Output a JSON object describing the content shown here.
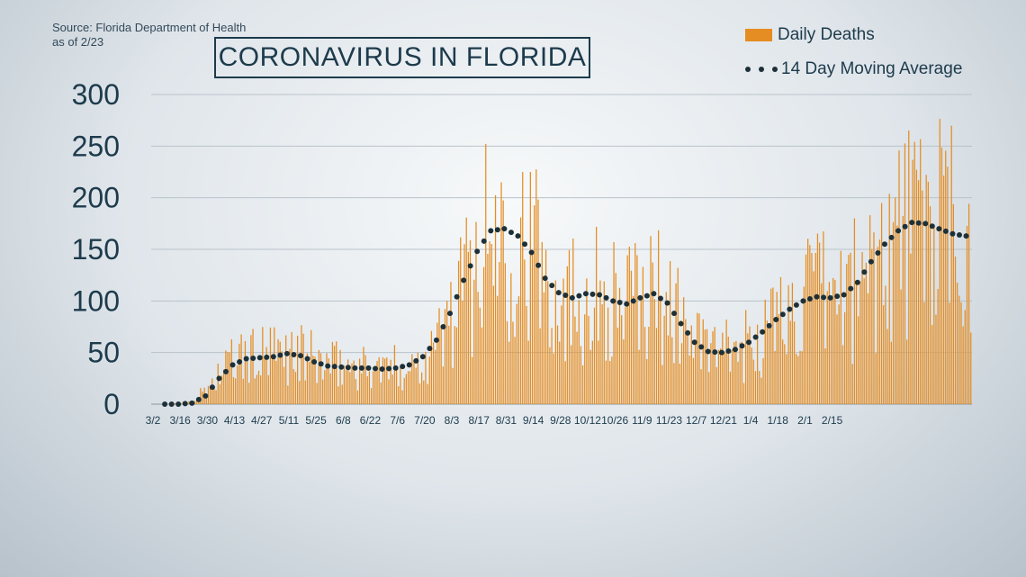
{
  "source": {
    "line1": "Source: Florida Department of Health",
    "line2": "as of 2/23"
  },
  "title": "CORONAVIRUS IN FLORIDA",
  "legend": {
    "bars": "Daily Deaths",
    "line": "14 Day Moving Average"
  },
  "colors": {
    "bar": "#e58d22",
    "dots": "#1d3038",
    "text": "#1d3b4c",
    "grid": "#b9c3cb"
  },
  "chart_data": {
    "type": "bar",
    "title": "CORONAVIRUS IN FLORIDA",
    "xlabel": "",
    "ylabel": "",
    "ylim": [
      0,
      300
    ],
    "y_ticks": [
      0,
      50,
      100,
      150,
      200,
      250,
      300
    ],
    "x_tick_labels": [
      "3/2",
      "3/16",
      "3/30",
      "4/13",
      "4/27",
      "5/11",
      "5/25",
      "6/8",
      "6/22",
      "7/6",
      "7/20",
      "8/3",
      "8/17",
      "8/31",
      "9/14",
      "9/28",
      "10/12",
      "10/26",
      "11/9",
      "11/23",
      "12/7",
      "12/21",
      "1/4",
      "1/18",
      "2/1",
      "2/15"
    ],
    "x_start": "3/2",
    "grid": true,
    "legend_position": "top-right",
    "weekly_series": [
      {
        "name": "Daily Deaths",
        "style": "bars",
        "note": "approximate weekly averages of daily values, starting 3/2",
        "values": [
          0,
          0,
          1,
          3,
          15,
          30,
          42,
          45,
          46,
          46,
          49,
          48,
          42,
          38,
          37,
          36,
          35,
          34,
          35,
          37,
          45,
          60,
          85,
          115,
          140,
          165,
          170,
          165,
          150,
          125,
          110,
          105,
          108,
          106,
          100,
          98,
          102,
          108,
          100,
          80,
          62,
          52,
          50,
          52,
          58,
          68,
          80,
          90,
          98,
          104,
          104,
          105,
          115,
          135,
          150,
          165,
          172,
          175,
          170,
          165,
          162
        ]
      },
      {
        "name": "14 Day Moving Average",
        "style": "dots",
        "note": "approximate weekly values of the moving average, starting 3/2",
        "values": [
          0,
          0,
          0,
          1,
          8,
          25,
          38,
          44,
          45,
          46,
          49,
          47,
          41,
          37,
          36,
          35,
          35,
          34,
          35,
          38,
          46,
          62,
          88,
          120,
          148,
          168,
          170,
          163,
          147,
          122,
          108,
          103,
          107,
          106,
          100,
          97,
          103,
          107,
          98,
          78,
          60,
          51,
          50,
          53,
          60,
          70,
          82,
          92,
          100,
          104,
          103,
          106,
          118,
          138,
          155,
          168,
          176,
          175,
          170,
          165,
          163
        ]
      }
    ]
  }
}
